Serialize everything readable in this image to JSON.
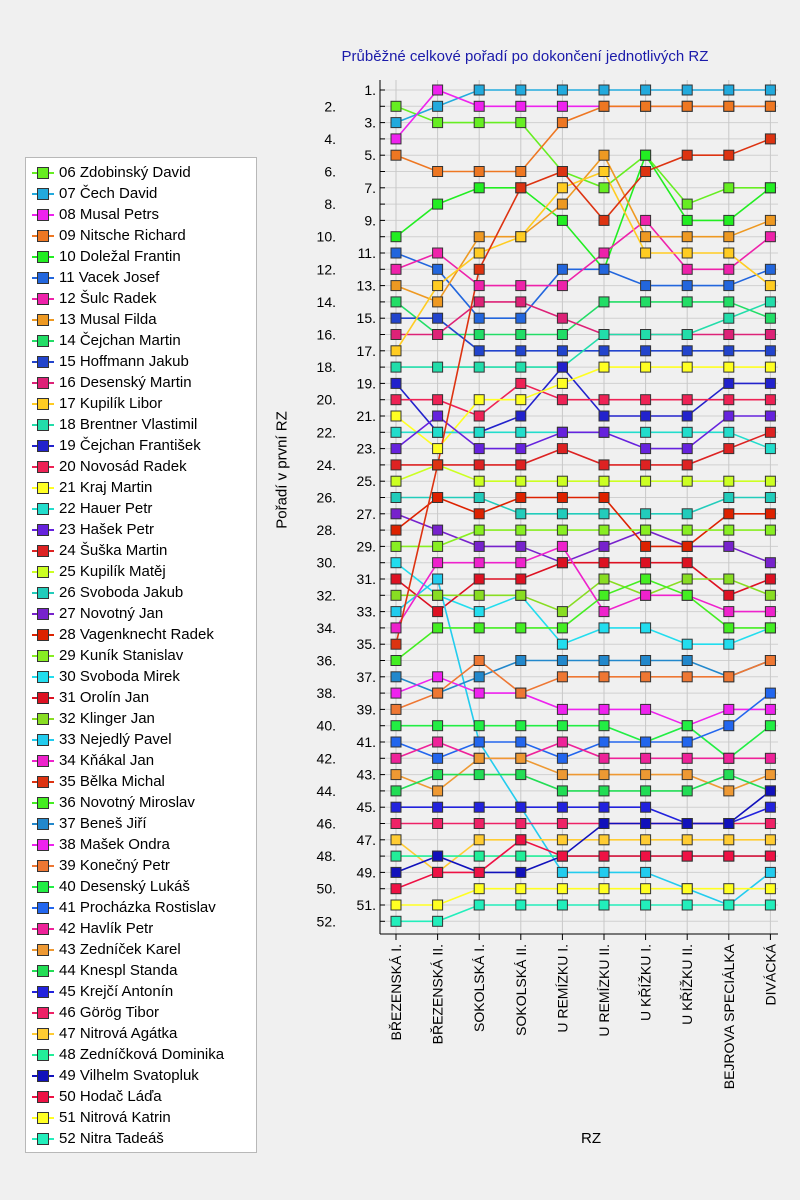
{
  "chart_data": {
    "type": "line",
    "title": "Průběžné celkové pořadí po dokončení jednotlivých RZ",
    "xlabel": "RZ",
    "ylabel": "Pořadí v první RZ",
    "categories": [
      "BŘEZENSKÁ I.",
      "BŘEZENSKÁ II.",
      "SOKOLSKÁ I.",
      "SOKOLSKÁ II.",
      "U REMÍZKU I.",
      "U REMÍZKU II.",
      "U KŘÍŽKU I.",
      "U KŘÍŽKU II.",
      "BEJROVA SPECIÁLKA",
      "DIVÁCKÁ"
    ],
    "y_ticks_left": [
      "2.",
      "4.",
      "6.",
      "8.",
      "10.",
      "12.",
      "14.",
      "16.",
      "18.",
      "20.",
      "22.",
      "24.",
      "26.",
      "28.",
      "30.",
      "32.",
      "34.",
      "36.",
      "38.",
      "40.",
      "42.",
      "44.",
      "46.",
      "48.",
      "50.",
      "52."
    ],
    "y_ticks_right": [
      "1.",
      "3.",
      "5.",
      "7.",
      "9.",
      "11.",
      "13.",
      "15.",
      "17.",
      "19.",
      "21.",
      "23.",
      "25.",
      "27.",
      "29.",
      "31.",
      "33.",
      "35.",
      "37.",
      "39.",
      "41.",
      "43.",
      "45.",
      "47.",
      "49.",
      "51."
    ],
    "ylim": [
      1,
      52
    ],
    "y_inverted": true,
    "grid": true,
    "legend_position": "left",
    "series": [
      {
        "name": "06 Zdobinský David",
        "color": "#66ee22",
        "values": [
          2,
          3,
          3,
          3,
          6,
          7,
          5,
          8,
          7,
          7
        ]
      },
      {
        "name": "07 Čech David",
        "color": "#22aadd",
        "values": [
          3,
          2,
          1,
          1,
          1,
          1,
          1,
          1,
          1,
          1
        ]
      },
      {
        "name": "08 Musal Petrs",
        "color": "#ee22ee",
        "values": [
          4,
          1,
          2,
          2,
          2,
          2,
          2,
          2,
          2,
          2
        ]
      },
      {
        "name": "09 Nitsche Richard",
        "color": "#ee7722",
        "values": [
          5,
          6,
          6,
          6,
          3,
          2,
          2,
          2,
          2,
          2
        ]
      },
      {
        "name": "10 Doležal Frantin",
        "color": "#22ee22",
        "values": [
          10,
          8,
          7,
          7,
          9,
          12,
          5,
          9,
          9,
          7
        ]
      },
      {
        "name": "11 Vacek Josef",
        "color": "#2266dd",
        "values": [
          11,
          12,
          15,
          15,
          12,
          12,
          13,
          13,
          13,
          12
        ]
      },
      {
        "name": "12 Šulc Radek",
        "color": "#ee22aa",
        "values": [
          12,
          11,
          13,
          13,
          13,
          11,
          9,
          12,
          12,
          10
        ]
      },
      {
        "name": "13 Musal Filda",
        "color": "#ee9922",
        "values": [
          13,
          14,
          10,
          10,
          8,
          5,
          10,
          10,
          10,
          9
        ]
      },
      {
        "name": "14 Čejchan Martin",
        "color": "#22dd66",
        "values": [
          14,
          16,
          16,
          16,
          16,
          14,
          14,
          14,
          14,
          15
        ]
      },
      {
        "name": "15 Hoffmann Jakub",
        "color": "#2244cc",
        "values": [
          15,
          15,
          17,
          17,
          17,
          17,
          17,
          17,
          17,
          17
        ]
      },
      {
        "name": "16 Desenský Martin",
        "color": "#dd2277",
        "values": [
          16,
          16,
          14,
          14,
          15,
          16,
          16,
          16,
          16,
          16
        ]
      },
      {
        "name": "17 Kupilík Libor",
        "color": "#ffcc22",
        "values": [
          17,
          13,
          11,
          10,
          7,
          6,
          11,
          11,
          11,
          13
        ]
      },
      {
        "name": "18 Brentner Vlastimil",
        "color": "#22ddaa",
        "values": [
          18,
          18,
          18,
          18,
          18,
          16,
          16,
          16,
          15,
          14
        ]
      },
      {
        "name": "19 Čejchan František",
        "color": "#2222cc",
        "values": [
          19,
          22,
          22,
          21,
          18,
          21,
          21,
          21,
          19,
          19
        ]
      },
      {
        "name": "20 Novosád Radek",
        "color": "#ee2255",
        "values": [
          20,
          20,
          21,
          19,
          20,
          20,
          20,
          20,
          20,
          20
        ]
      },
      {
        "name": "21 Kraj Martin",
        "color": "#ffff22",
        "values": [
          21,
          23,
          20,
          20,
          19,
          18,
          18,
          18,
          18,
          18
        ]
      },
      {
        "name": "22 Hauer Petr",
        "color": "#22ddcc",
        "values": [
          22,
          22,
          22,
          22,
          22,
          22,
          22,
          22,
          22,
          23
        ]
      },
      {
        "name": "23 Hašek Petr",
        "color": "#6622dd",
        "values": [
          23,
          21,
          23,
          23,
          22,
          22,
          23,
          23,
          21,
          21
        ]
      },
      {
        "name": "24 Šuška Martin",
        "color": "#dd2222",
        "values": [
          24,
          24,
          24,
          24,
          23,
          24,
          24,
          24,
          23,
          22
        ]
      },
      {
        "name": "25 Kupilík Matěj",
        "color": "#ccff22",
        "values": [
          25,
          24,
          25,
          25,
          25,
          25,
          25,
          25,
          25,
          25
        ]
      },
      {
        "name": "26 Svoboda Jakub",
        "color": "#22ccbb",
        "values": [
          26,
          26,
          26,
          27,
          27,
          27,
          27,
          27,
          26,
          26
        ]
      },
      {
        "name": "27 Novotný Jan",
        "color": "#7722cc",
        "values": [
          27,
          28,
          29,
          29,
          30,
          29,
          28,
          29,
          29,
          30
        ]
      },
      {
        "name": "28 Vagenknecht Radek",
        "color": "#dd2200",
        "values": [
          28,
          26,
          27,
          26,
          26,
          26,
          29,
          29,
          27,
          27
        ]
      },
      {
        "name": "29 Kuník Stanislav",
        "color": "#88ee22",
        "values": [
          29,
          29,
          28,
          28,
          28,
          28,
          28,
          28,
          28,
          28
        ]
      },
      {
        "name": "30 Svoboda Mirek",
        "color": "#22ddee",
        "values": [
          30,
          32,
          33,
          32,
          35,
          34,
          34,
          35,
          35,
          34
        ]
      },
      {
        "name": "31 Orolín Jan",
        "color": "#dd1122",
        "values": [
          31,
          33,
          31,
          31,
          30,
          30,
          30,
          30,
          32,
          31
        ]
      },
      {
        "name": "32 Klinger Jan",
        "color": "#88dd22",
        "values": [
          32,
          32,
          32,
          32,
          33,
          31,
          32,
          31,
          31,
          32
        ]
      },
      {
        "name": "33 Nejedlý Pavel",
        "color": "#22ccee",
        "values": [
          33,
          31,
          41,
          45,
          49,
          49,
          49,
          50,
          51,
          49
        ]
      },
      {
        "name": "34 Kňákal Jan",
        "color": "#ee22cc",
        "values": [
          34,
          30,
          30,
          30,
          29,
          33,
          32,
          32,
          33,
          33
        ]
      },
      {
        "name": "35 Bělka Michal",
        "color": "#dd3311",
        "values": [
          35,
          24,
          12,
          7,
          6,
          9,
          6,
          5,
          5,
          4
        ]
      },
      {
        "name": "36 Novotný Miroslav",
        "color": "#44ee22",
        "values": [
          36,
          34,
          34,
          34,
          34,
          32,
          31,
          32,
          34,
          34
        ]
      },
      {
        "name": "37 Beneš Jiří",
        "color": "#2288cc",
        "values": [
          37,
          38,
          37,
          36,
          36,
          36,
          36,
          36,
          37,
          36
        ]
      },
      {
        "name": "38 Mašek Ondra",
        "color": "#ee22ee",
        "values": [
          38,
          37,
          38,
          38,
          39,
          39,
          39,
          40,
          39,
          39
        ]
      },
      {
        "name": "39 Konečný Petr",
        "color": "#ee7733",
        "values": [
          39,
          38,
          36,
          38,
          37,
          37,
          37,
          37,
          37,
          36
        ]
      },
      {
        "name": "40 Desenský Lukáš",
        "color": "#22ee44",
        "values": [
          40,
          40,
          40,
          40,
          40,
          40,
          41,
          40,
          42,
          40
        ]
      },
      {
        "name": "41 Procházka Rostislav",
        "color": "#2266ee",
        "values": [
          41,
          42,
          41,
          41,
          42,
          41,
          41,
          41,
          40,
          38
        ]
      },
      {
        "name": "42 Havlík Petr",
        "color": "#ee2299",
        "values": [
          42,
          41,
          42,
          42,
          41,
          42,
          42,
          42,
          42,
          42
        ]
      },
      {
        "name": "43 Zedníček Karel",
        "color": "#ee9933",
        "values": [
          43,
          44,
          42,
          42,
          43,
          43,
          43,
          43,
          44,
          43
        ]
      },
      {
        "name": "44 Knespl Standa",
        "color": "#22dd55",
        "values": [
          44,
          43,
          43,
          43,
          44,
          44,
          44,
          44,
          43,
          44
        ]
      },
      {
        "name": "45 Krejčí Antonín",
        "color": "#2222dd",
        "values": [
          45,
          45,
          45,
          45,
          45,
          45,
          45,
          46,
          46,
          45
        ]
      },
      {
        "name": "46 Görög Tibor",
        "color": "#ee2266",
        "values": [
          46,
          46,
          46,
          46,
          46,
          46,
          46,
          46,
          46,
          46
        ]
      },
      {
        "name": "47 Nitrová Agátka",
        "color": "#ffcc33",
        "values": [
          47,
          49,
          47,
          47,
          47,
          47,
          47,
          47,
          47,
          47
        ]
      },
      {
        "name": "48 Zedníčková Dominika",
        "color": "#22ee99",
        "values": [
          48,
          48,
          48,
          48,
          48,
          48,
          48,
          48,
          48,
          48
        ]
      },
      {
        "name": "49 Vilhelm Svatopluk",
        "color": "#1111bb",
        "values": [
          49,
          48,
          49,
          49,
          48,
          46,
          46,
          46,
          46,
          44
        ]
      },
      {
        "name": "50 Hodač Láďa",
        "color": "#ee1144",
        "values": [
          50,
          49,
          49,
          47,
          48,
          48,
          48,
          48,
          48,
          48
        ]
      },
      {
        "name": "51 Nitrová Katrin",
        "color": "#ffff22",
        "values": [
          51,
          51,
          50,
          50,
          50,
          50,
          50,
          50,
          50,
          50
        ]
      },
      {
        "name": "52 Nitra Tadeáš",
        "color": "#22eebb",
        "values": [
          52,
          52,
          51,
          51,
          51,
          51,
          51,
          51,
          51,
          51
        ]
      }
    ]
  }
}
